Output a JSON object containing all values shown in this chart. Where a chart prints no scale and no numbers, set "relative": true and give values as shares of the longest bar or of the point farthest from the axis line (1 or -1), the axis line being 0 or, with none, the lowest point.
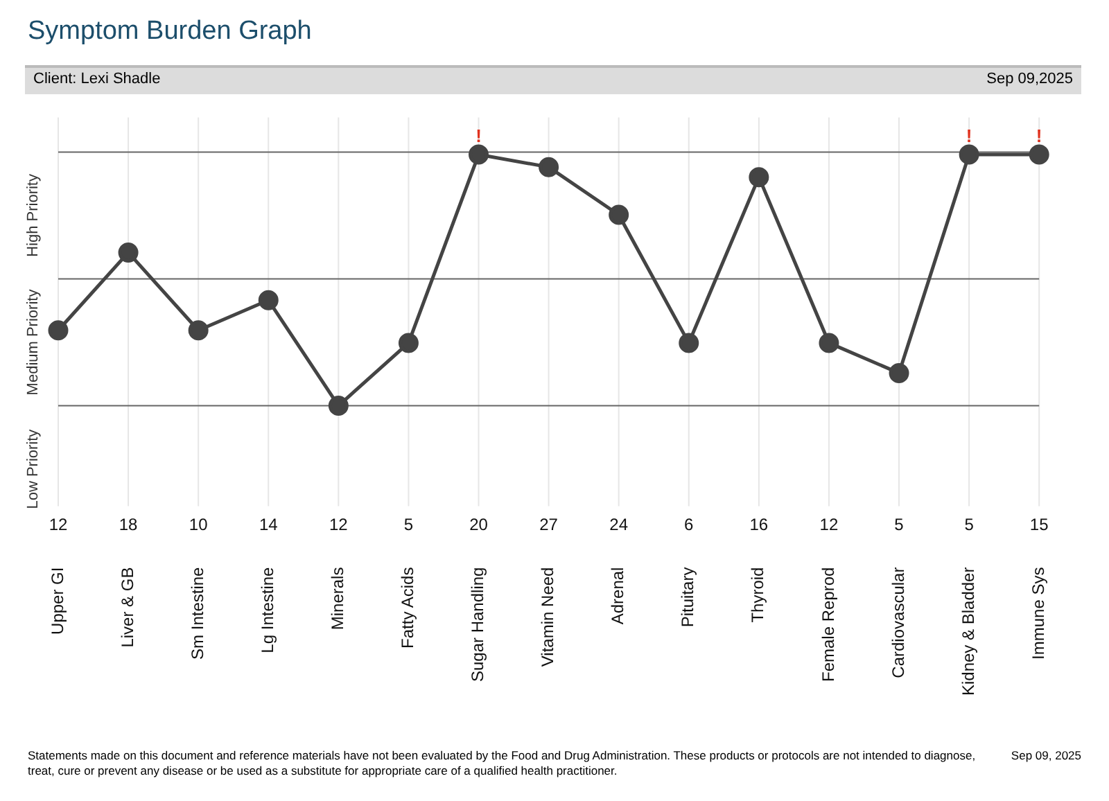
{
  "chart_data": {
    "type": "line",
    "title": "Symptom Burden Graph",
    "relative": true,
    "categories": [
      "Upper GI",
      "Liver & GB",
      "Sm Intestine",
      "Lg Intestine",
      "Minerals",
      "Fatty Acids",
      "Sugar Handling",
      "Vitamin Need",
      "Adrenal",
      "Pituitary",
      "Thyroid",
      "Female Reprod",
      "Cardiovascular",
      "Kidney & Bladder",
      "Immune Sys"
    ],
    "series": [
      {
        "color": "#444444",
        "values": [
          0.3,
          0.61,
          0.3,
          0.42,
          0,
          0.25,
          1,
          0.95,
          0.76,
          0.25,
          0.91,
          0.25,
          0.13,
          1,
          1
        ]
      }
    ],
    "marker": "circle",
    "line_style": "solid",
    "grid": "x",
    "legend": false,
    "ref_lines": [
      {
        "axis": "y",
        "value": 1.01,
        "color": "#666666"
      },
      {
        "axis": "y",
        "value": 0.505,
        "color": "#666666"
      },
      {
        "axis": "y",
        "value": 0,
        "color": "#666666"
      }
    ],
    "annotations": [
      "Client: Lexi Shadle",
      "Sep 09,2025",
      "Statements made on this document and reference materials have not been evaluated by the Food and Drug Administration. These products or protocols are not intended to diagnose, treat, cure or prevent any disease or be used as a substitute for appropriate care of a qualified health practitioner.",
      "Sep 09, 2025",
      "Low Priority",
      "Medium Priority",
      "High Priority",
      {
        "text": "!",
        "x": "Sugar Handling",
        "y": 1
      },
      {
        "text": "!",
        "x": "Kidney & Bladder",
        "y": 1
      },
      {
        "text": "!",
        "x": "Immune Sys",
        "y": 1
      },
      "12",
      "18",
      "10",
      "14",
      "12",
      "5",
      "20",
      "27",
      "24",
      "6",
      "16",
      "12",
      "5",
      "5",
      "15"
    ]
  }
}
